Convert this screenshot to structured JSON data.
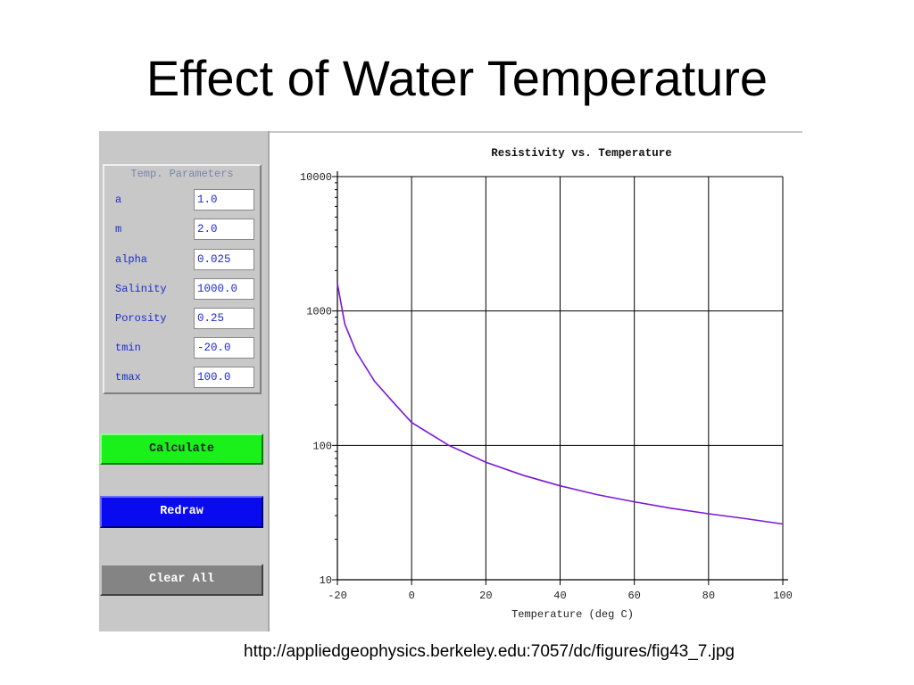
{
  "slide": {
    "title": "Effect of Water Temperature",
    "source_url": "http://appliedgeophysics.berkeley.edu:7057/dc/figures/fig43_7.jpg"
  },
  "params": {
    "title": "Temp. Parameters",
    "fields": [
      {
        "label": "a",
        "value": "1.0"
      },
      {
        "label": "m",
        "value": "2.0"
      },
      {
        "label": "alpha",
        "value": "0.025"
      },
      {
        "label": "Salinity",
        "value": "1000.0"
      },
      {
        "label": "Porosity",
        "value": "0.25"
      },
      {
        "label": "tmin",
        "value": "-20.0"
      },
      {
        "label": "tmax",
        "value": "100.0"
      }
    ]
  },
  "buttons": {
    "calculate": "Calculate",
    "redraw": "Redraw",
    "clear_all": "Clear All"
  },
  "colors": {
    "calculate": "#1af01a",
    "redraw": "#0a0af0",
    "clear_all": "#848484",
    "curve": "#7a18d8",
    "panel": "#c8c8c8"
  },
  "chart_data": {
    "type": "line",
    "title": "Resistivity vs. Temperature",
    "xlabel": "Temperature (deg C)",
    "ylabel": "",
    "xlim": [
      -20,
      100
    ],
    "ylim": [
      10,
      10000
    ],
    "yscale": "log",
    "grid": true,
    "xticks": [
      "-20",
      "0",
      "20",
      "40",
      "60",
      "80",
      "100"
    ],
    "yticks": [
      "10",
      "100",
      "1000",
      "10000"
    ],
    "series": [
      {
        "x": [
          -20,
          -18,
          -15,
          -10,
          -5,
          0,
          10,
          20,
          30,
          40,
          50,
          60,
          70,
          80,
          90,
          100
        ],
        "y": [
          1600,
          800,
          500,
          300,
          210,
          148,
          100,
          75,
          60,
          50,
          43,
          38,
          34,
          31,
          28.5,
          26
        ]
      }
    ]
  }
}
